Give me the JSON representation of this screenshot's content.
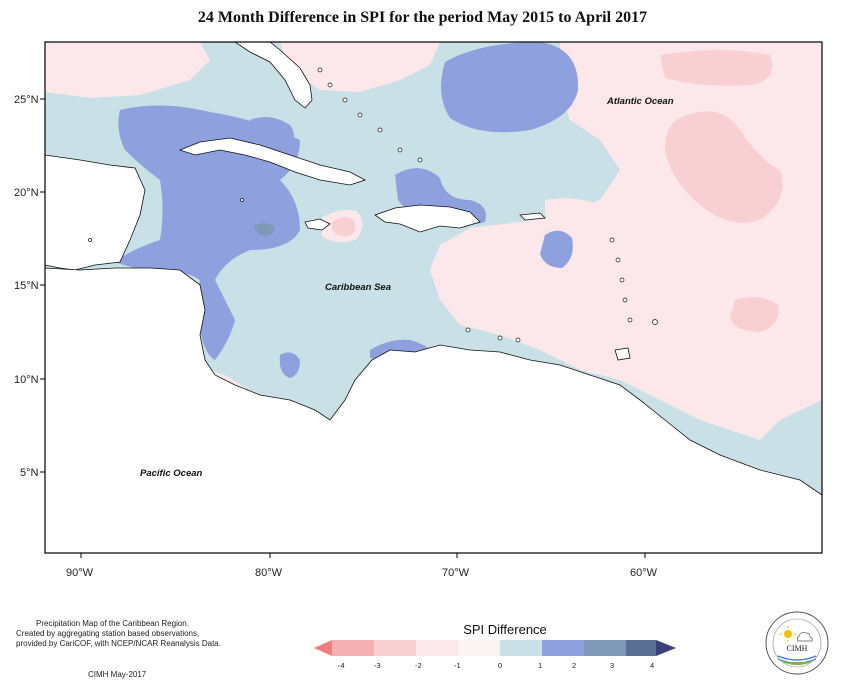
{
  "title": "24 Month Difference in SPI for the period May 2015 to April 2017",
  "map": {
    "ocean_labels": {
      "atlantic": "Atlantic Ocean",
      "caribbean": "Caribbean Sea",
      "pacific": "Pacific Ocean"
    },
    "lat_ticks": [
      "25°N",
      "20°N",
      "15°N",
      "10°N",
      "5°N"
    ],
    "lon_ticks": [
      "90°W",
      "80°W",
      "70°W",
      "60°W"
    ],
    "colors": {
      "neg4": "#f08080",
      "neg3": "#f4b0b2",
      "neg2": "#f8d0d4",
      "neg1": "#fce8ea",
      "zero": "#c9e0e6",
      "pos1": "#8fa0de",
      "pos2": "#7f98b8",
      "pos3": "#5a6f92",
      "pos4": "#3a3f7a",
      "land": "#ffffff"
    }
  },
  "legend": {
    "title": "SPI Difference",
    "labels": [
      "-4",
      "-3",
      "-2",
      "-1",
      "0",
      "1",
      "2",
      "3",
      "4"
    ]
  },
  "notes": {
    "line1": "Precipitation Map of the Caribbean Region.",
    "line2": "Created by aggregating station based observations,",
    "line3": "provided by CariCOF, with NCEP/NCAR Reanalysis Data.",
    "credit": "CIMH May-2017"
  },
  "logo": {
    "text": "CIMH"
  }
}
